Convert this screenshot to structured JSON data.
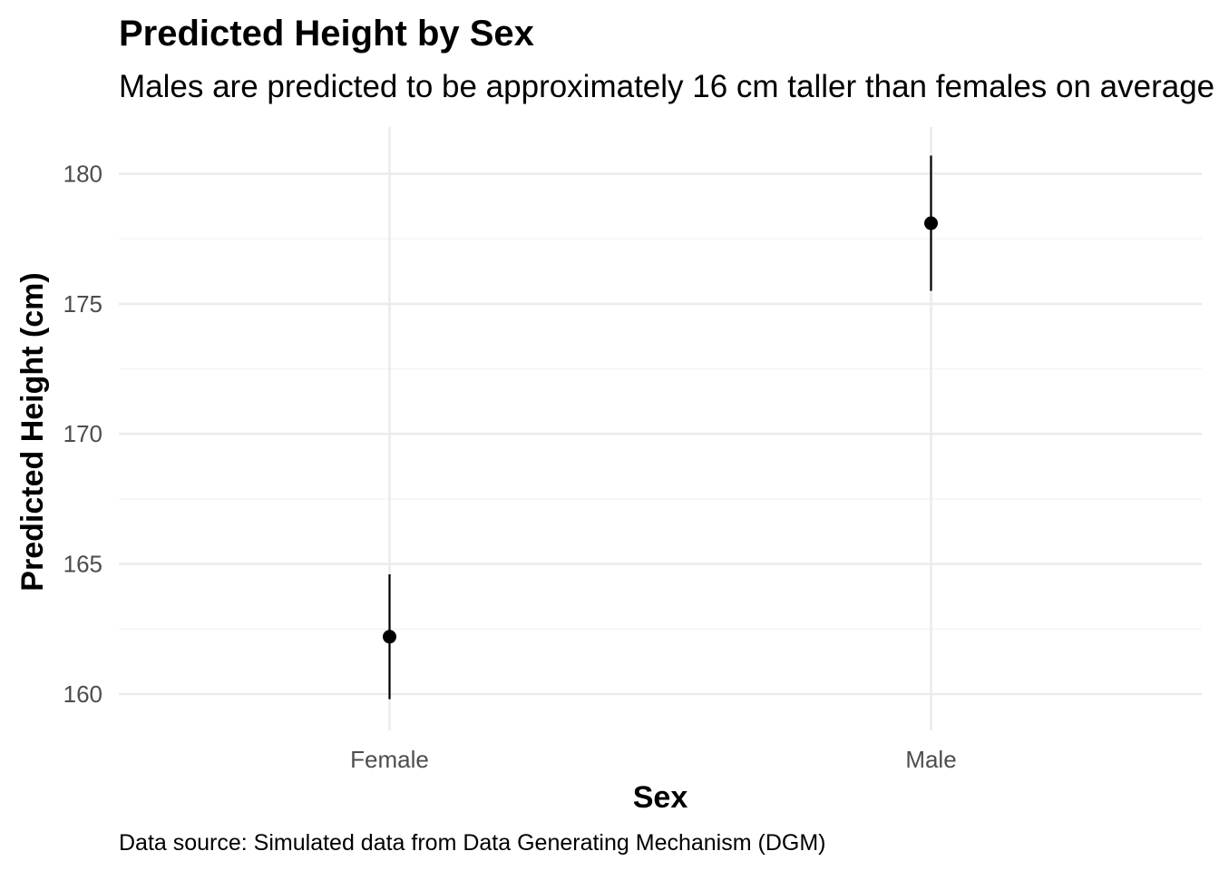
{
  "colors": {
    "background": "#ffffff",
    "grid_major": "#ebebeb",
    "grid_minor": "#f2f2f2",
    "tick_text": "#4d4d4d",
    "point": "#000000",
    "errorbar": "#000000"
  },
  "chart_data": {
    "type": "scatter",
    "title": "Predicted Height by Sex",
    "subtitle": "Males are predicted to be approximately 16 cm taller than females on average",
    "xlabel": "Sex",
    "ylabel": "Predicted Height (cm)",
    "caption": "Data source: Simulated data from Data Generating Mechanism (DGM)",
    "categories": [
      "Female",
      "Male"
    ],
    "series": [
      {
        "values": [
          162.2,
          178.1
        ],
        "lower": [
          159.8,
          175.5
        ],
        "upper": [
          164.6,
          180.7
        ]
      }
    ],
    "ylim": [
      158.6,
      181.8
    ],
    "yticks": [
      160,
      165,
      170,
      175,
      180
    ],
    "yticks_minor": [
      162.5,
      167.5,
      172.5,
      177.5
    ],
    "grid": true,
    "legend": "none"
  }
}
